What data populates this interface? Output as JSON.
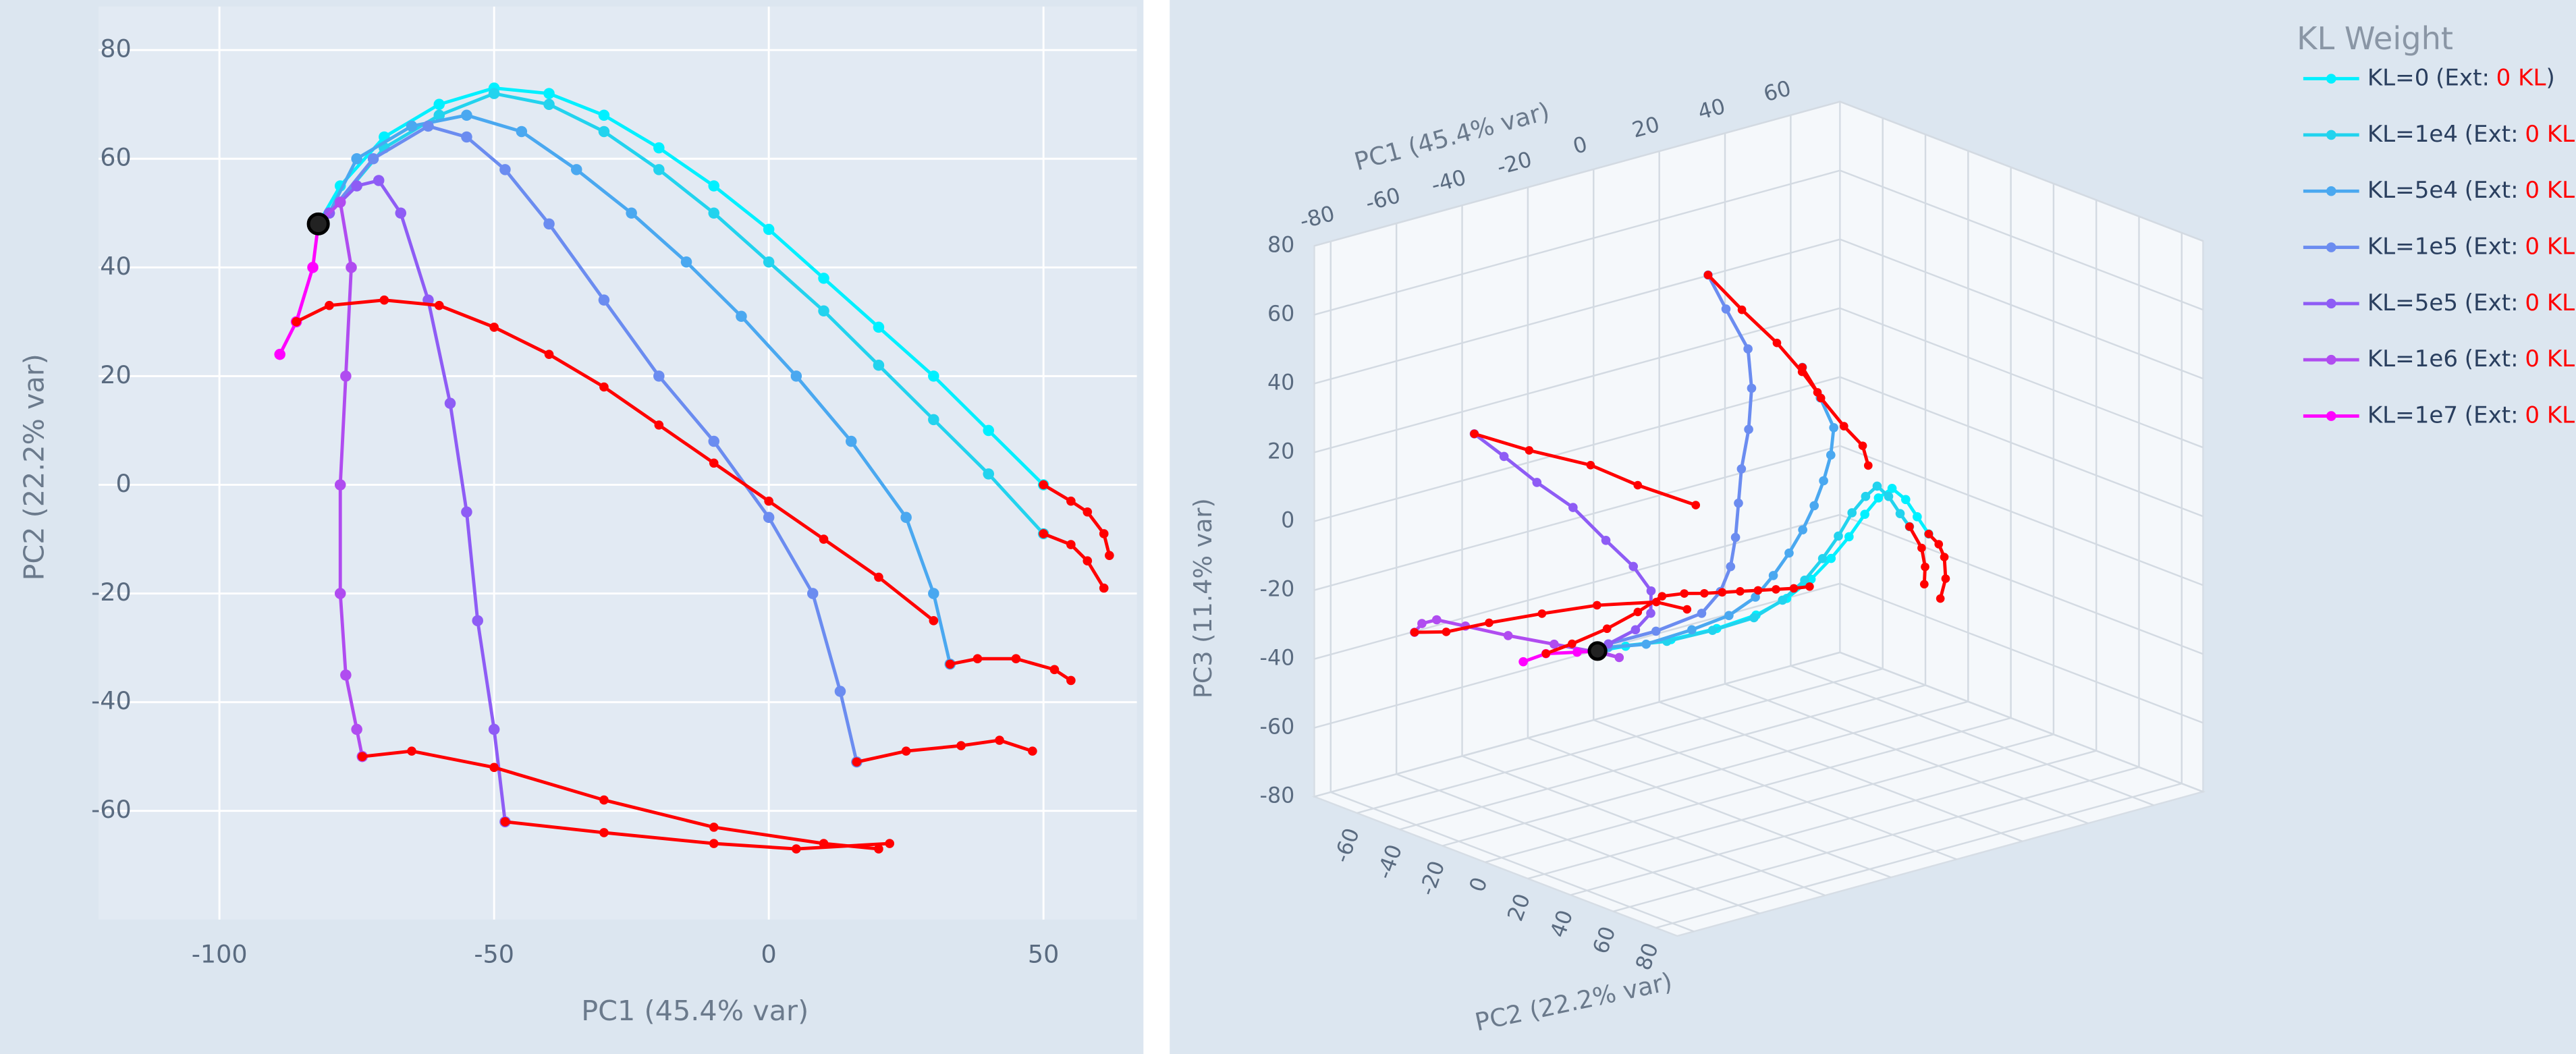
{
  "chart_data": [
    {
      "type": "scatter",
      "x_title": "PC1 (45.4% var)",
      "y_title": "PC2 (22.2% var)",
      "xlim": [
        -122,
        67
      ],
      "ylim": [
        -80,
        88
      ],
      "xticks": [
        -100,
        -50,
        0,
        50
      ],
      "yticks": [
        -60,
        -40,
        -20,
        0,
        20,
        40,
        60,
        80
      ],
      "grid": true,
      "legend_title": "KL Weight",
      "legend_position": "right",
      "ext_color": "#ff0000",
      "start": {
        "x": -82,
        "y": 48
      },
      "series": [
        {
          "name": "KL=0",
          "ext_label": [
            "(Ext:",
            "0 KL",
            ")"
          ],
          "color": "#00f0ff",
          "x": [
            -82,
            -78,
            -70,
            -60,
            -50,
            -40,
            -30,
            -20,
            -10,
            0,
            10,
            20,
            30,
            40,
            50
          ],
          "y": [
            48,
            55,
            64,
            70,
            73,
            72,
            68,
            62,
            55,
            47,
            38,
            29,
            20,
            10,
            0
          ],
          "ext_x": [
            50,
            55,
            58,
            61,
            62
          ],
          "ext_y": [
            0,
            -3,
            -5,
            -9,
            -13
          ]
        },
        {
          "name": "KL=1e4",
          "ext_label": [
            "(Ext:",
            "0 KL",
            ")"
          ],
          "color": "#22d3ee",
          "x": [
            -82,
            -80,
            -70,
            -60,
            -50,
            -40,
            -30,
            -20,
            -10,
            0,
            10,
            20,
            30,
            40,
            50
          ],
          "y": [
            48,
            50,
            62,
            68,
            72,
            70,
            65,
            58,
            50,
            41,
            32,
            22,
            12,
            2,
            -9
          ],
          "ext_x": [
            50,
            55,
            58,
            61
          ],
          "ext_y": [
            -9,
            -11,
            -14,
            -19
          ]
        },
        {
          "name": "KL=5e4",
          "ext_label": [
            "(Ext:",
            "0 KL",
            ")"
          ],
          "color": "#4aa8f0",
          "x": [
            -82,
            -80,
            -75,
            -65,
            -55,
            -45,
            -35,
            -25,
            -15,
            -5,
            5,
            15,
            25,
            30,
            33
          ],
          "y": [
            48,
            50,
            60,
            66,
            68,
            65,
            58,
            50,
            41,
            31,
            20,
            8,
            -6,
            -20,
            -33
          ],
          "ext_x": [
            33,
            38,
            45,
            52,
            55
          ],
          "ext_y": [
            -33,
            -32,
            -32,
            -34,
            -36
          ]
        },
        {
          "name": "KL=1e5",
          "ext_label": [
            "(Ext:",
            "0 KL",
            ")"
          ],
          "color": "#6b8cf0",
          "x": [
            -82,
            -80,
            -72,
            -62,
            -55,
            -48,
            -40,
            -30,
            -20,
            -10,
            0,
            8,
            13,
            16
          ],
          "y": [
            48,
            50,
            60,
            66,
            64,
            58,
            48,
            34,
            20,
            8,
            -6,
            -20,
            -38,
            -51
          ],
          "ext_x": [
            16,
            25,
            35,
            42,
            48
          ],
          "ext_y": [
            -51,
            -49,
            -48,
            -47,
            -49
          ]
        },
        {
          "name": "KL=5e5",
          "ext_label": [
            "(Ext:",
            "0 KL",
            ")"
          ],
          "color": "#8e5cf5",
          "x": [
            -82,
            -80,
            -75,
            -71,
            -67,
            -62,
            -58,
            -55,
            -53,
            -50,
            -48
          ],
          "y": [
            48,
            50,
            55,
            56,
            50,
            34,
            15,
            -5,
            -25,
            -45,
            -62
          ],
          "ext_x": [
            -48,
            -30,
            -10,
            5,
            22
          ],
          "ext_y": [
            -62,
            -64,
            -66,
            -67,
            -66
          ]
        },
        {
          "name": "KL=1e6",
          "ext_label": [
            "(Ext:",
            "0 KL",
            ")"
          ],
          "color": "#b04cf0",
          "x": [
            -82,
            -78,
            -76,
            -77,
            -78,
            -78,
            -77,
            -75,
            -74
          ],
          "y": [
            48,
            52,
            40,
            20,
            0,
            -20,
            -35,
            -45,
            -50
          ],
          "ext_x": [
            -74,
            -65,
            -50,
            -30,
            -10,
            10,
            20
          ],
          "ext_y": [
            -50,
            -49,
            -52,
            -58,
            -63,
            -66,
            -67
          ]
        },
        {
          "name": "KL=1e7",
          "ext_label": [
            "(Ext:",
            "0 KL",
            ")"
          ],
          "color": "#ff00ff",
          "x": [
            -82,
            -83,
            -86,
            -89
          ],
          "y": [
            48,
            40,
            30,
            24
          ],
          "ext_x": [
            -86,
            -80,
            -70,
            -60,
            -50,
            -40,
            -30,
            -20,
            -10,
            0,
            10,
            20,
            30
          ],
          "ext_y": [
            30,
            33,
            34,
            33,
            29,
            24,
            18,
            11,
            4,
            -3,
            -10,
            -17,
            -25
          ]
        }
      ]
    },
    {
      "type": "scatter3d",
      "x_title": "PC1 (45.4% var)",
      "y_title": "PC2 (22.2% var)",
      "z_title": "PC3 (11.4% var)",
      "xlim": [
        -85,
        75
      ],
      "ylim": [
        -80,
        90
      ],
      "zlim": [
        -80,
        80
      ],
      "xticks": [
        -80,
        -60,
        -40,
        -20,
        0,
        20,
        40,
        60
      ],
      "yticks": [
        -60,
        -40,
        -20,
        0,
        20,
        40,
        60,
        80
      ],
      "zticks": [
        -80,
        -60,
        -40,
        -20,
        0,
        20,
        40,
        60,
        80
      ],
      "grid": true,
      "ext_color": "#ff0000",
      "start": {
        "x": -82,
        "y": 48,
        "z": -8
      },
      "series": [
        {
          "color": "#00f0ff",
          "x": [
            -82,
            -78,
            -70,
            -60,
            -50,
            -40,
            -30,
            -20,
            -10,
            0,
            10,
            20,
            30,
            40,
            50
          ],
          "y": [
            48,
            55,
            64,
            70,
            73,
            72,
            68,
            62,
            55,
            47,
            38,
            29,
            20,
            10,
            0
          ],
          "z": [
            -8,
            -6,
            -4,
            -2,
            0,
            2,
            4,
            6,
            8,
            10,
            10,
            8,
            0,
            -10,
            -20
          ],
          "ext_x": [
            50,
            55,
            58,
            61,
            62
          ],
          "ext_y": [
            0,
            -3,
            -5,
            -9,
            -13
          ],
          "ext_z": [
            -20,
            -25,
            -30,
            -38,
            -45
          ]
        },
        {
          "color": "#22d3ee",
          "x": [
            -82,
            -80,
            -70,
            -60,
            -50,
            -40,
            -30,
            -20,
            -10,
            0,
            10,
            20,
            30,
            40,
            50
          ],
          "y": [
            48,
            50,
            62,
            68,
            72,
            70,
            65,
            58,
            50,
            41,
            32,
            22,
            12,
            2,
            -9
          ],
          "z": [
            -8,
            -7,
            -5,
            -3,
            -1,
            1,
            3,
            5,
            7,
            9,
            9,
            7,
            -1,
            -11,
            -20
          ],
          "ext_x": [
            50,
            55,
            58,
            61
          ],
          "ext_y": [
            -9,
            -11,
            -14,
            -19
          ],
          "ext_z": [
            -20,
            -28,
            -35,
            -42
          ]
        },
        {
          "color": "#4aa8f0",
          "x": [
            -82,
            -80,
            -75,
            -65,
            -55,
            -45,
            -35,
            -25,
            -15,
            -5,
            5,
            15,
            25,
            30,
            33
          ],
          "y": [
            48,
            50,
            60,
            66,
            68,
            65,
            58,
            50,
            41,
            31,
            20,
            8,
            -6,
            -20,
            -33
          ],
          "z": [
            -8,
            -7,
            -5,
            -2,
            0,
            2,
            4,
            6,
            8,
            10,
            12,
            14,
            16,
            20,
            25
          ],
          "ext_x": [
            33,
            38,
            45,
            52,
            55
          ],
          "ext_y": [
            -33,
            -32,
            -32,
            -34,
            -36
          ],
          "ext_z": [
            25,
            15,
            5,
            -3,
            -10
          ]
        },
        {
          "color": "#6b8cf0",
          "x": [
            -82,
            -80,
            -72,
            -62,
            -55,
            -48,
            -40,
            -30,
            -20,
            -10,
            0,
            8,
            13,
            16
          ],
          "y": [
            48,
            50,
            60,
            66,
            64,
            58,
            48,
            34,
            20,
            8,
            -6,
            -20,
            -38,
            -51
          ],
          "z": [
            -8,
            -6,
            -2,
            2,
            6,
            10,
            14,
            18,
            22,
            28,
            34,
            40,
            46,
            52
          ],
          "ext_x": [
            16,
            25,
            35,
            42,
            48
          ],
          "ext_y": [
            -51,
            -49,
            -48,
            -47,
            -49
          ],
          "ext_z": [
            52,
            40,
            28,
            18,
            10
          ]
        },
        {
          "color": "#8e5cf5",
          "x": [
            -82,
            -80,
            -75,
            -71,
            -67,
            -62,
            -58,
            -55,
            -53,
            -50,
            -48
          ],
          "y": [
            48,
            50,
            55,
            56,
            50,
            34,
            15,
            -5,
            -25,
            -45,
            -62
          ],
          "z": [
            -8,
            -6,
            -2,
            2,
            6,
            8,
            10,
            14,
            16,
            18,
            20
          ],
          "ext_x": [
            -48,
            -30,
            -10,
            5,
            22
          ],
          "ext_y": [
            -62,
            -64,
            -66,
            -67,
            -66
          ],
          "ext_z": [
            20,
            10,
            0,
            -10,
            -20
          ]
        },
        {
          "color": "#b04cf0",
          "x": [
            -82,
            -78,
            -76,
            -77,
            -78,
            -78,
            -77,
            -75,
            -74
          ],
          "y": [
            48,
            52,
            40,
            20,
            0,
            -20,
            -35,
            -45,
            -50
          ],
          "z": [
            -8,
            -10,
            -12,
            -14,
            -16,
            -18,
            -20,
            -24,
            -28
          ],
          "ext_x": [
            -74,
            -65,
            -50,
            -30,
            -10,
            10,
            20
          ],
          "ext_y": [
            -50,
            -49,
            -52,
            -58,
            -63,
            -66,
            -67
          ],
          "ext_z": [
            -28,
            -30,
            -32,
            -36,
            -40,
            -45,
            -50
          ]
        },
        {
          "color": "#ff00ff",
          "x": [
            -82,
            -83,
            -86,
            -89
          ],
          "y": [
            48,
            40,
            30,
            24
          ],
          "z": [
            -8,
            -10,
            -12,
            -15
          ],
          "ext_x": [
            -86,
            -80,
            -70,
            -60,
            -50,
            -40,
            -30,
            -20,
            -10,
            0,
            10,
            20,
            30
          ],
          "ext_y": [
            30,
            33,
            34,
            33,
            29,
            24,
            18,
            11,
            4,
            -3,
            -10,
            -17,
            -25
          ],
          "ext_z": [
            -12,
            -10,
            -8,
            -6,
            -5,
            -8,
            -12,
            -16,
            -20,
            -24,
            -28,
            -32,
            -36
          ]
        }
      ]
    }
  ]
}
